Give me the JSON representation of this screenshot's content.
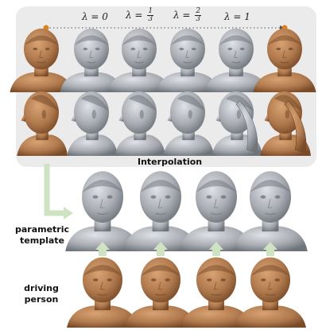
{
  "labels": {
    "lambda0": "λ = 0",
    "lambda13_num": "1",
    "lambda13_den": "3",
    "lambda23_num": "2",
    "lambda23_den": "3",
    "lambda_prefix": "λ =",
    "lambda1": "λ = 1",
    "interpolation": "Interpolation",
    "parametric_template": "parametric template",
    "driving_person": "driving person"
  },
  "colors": {
    "bronze": "#b07a4e",
    "bronze_dark": "#8a5a34",
    "grey": "#a9adb3",
    "grey_dark": "#80858c",
    "orange_dot": "#e0801a",
    "arrow_green": "#cfe3c2",
    "panel_bg": "#ebebeb"
  }
}
